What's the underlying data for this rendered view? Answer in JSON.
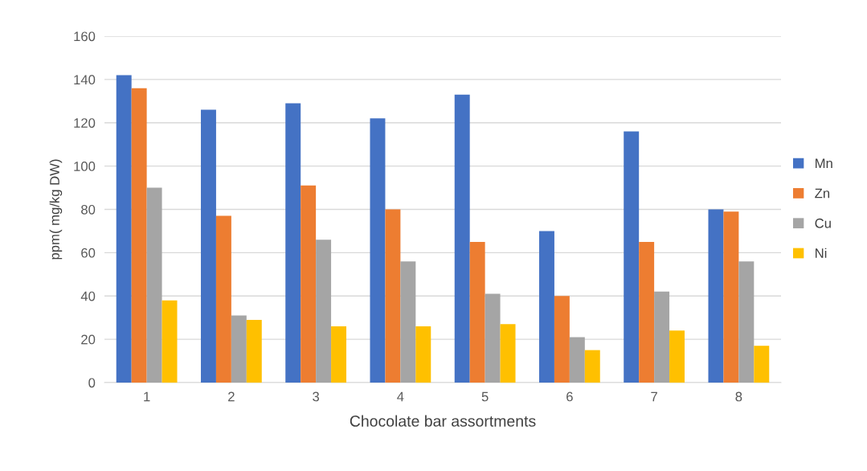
{
  "chart_data": {
    "type": "bar",
    "xlabel": "Chocolate bar assortments",
    "ylabel": "ppm( mg/kg DW)",
    "categories": [
      "1",
      "2",
      "3",
      "4",
      "5",
      "6",
      "7",
      "8"
    ],
    "series": [
      {
        "name": "Mn",
        "color": "#4472c4",
        "values": [
          142,
          126,
          129,
          122,
          133,
          70,
          116,
          80
        ]
      },
      {
        "name": "Zn",
        "color": "#ed7d31",
        "values": [
          136,
          77,
          91,
          80,
          65,
          40,
          65,
          79
        ]
      },
      {
        "name": "Cu",
        "color": "#a5a5a5",
        "values": [
          90,
          31,
          66,
          56,
          41,
          21,
          42,
          56
        ]
      },
      {
        "name": "Ni",
        "color": "#ffc000",
        "values": [
          38,
          29,
          26,
          26,
          27,
          15,
          24,
          17
        ]
      }
    ],
    "ylim": [
      0,
      160
    ],
    "yticks": [
      0,
      20,
      40,
      60,
      80,
      100,
      120,
      140,
      160
    ],
    "grid": "y",
    "legend": "right"
  }
}
